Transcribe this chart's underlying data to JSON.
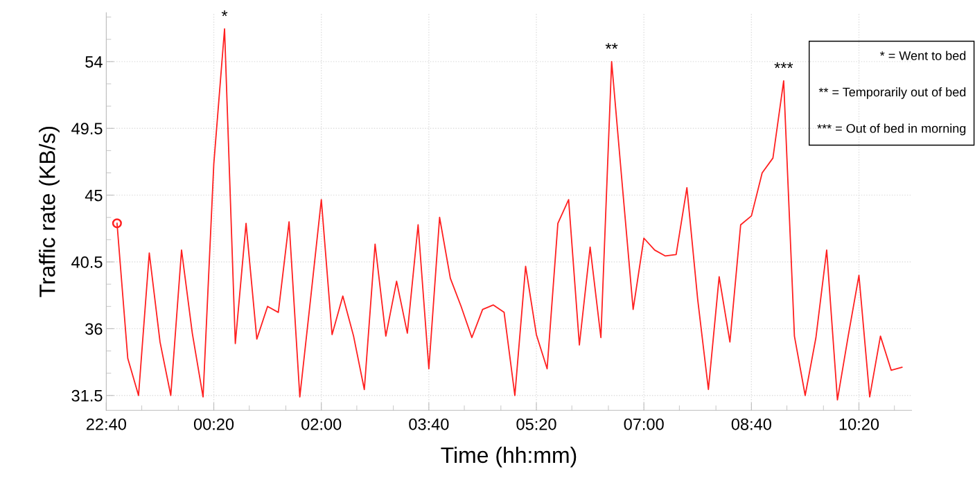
{
  "chart_data": {
    "type": "line",
    "xlabel": "Time (hh:mm)",
    "ylabel": "Traffic rate (KB/s)",
    "xlim": [
      "2000-01-01T22:40",
      "2000-01-02T11:09"
    ],
    "ylim": [
      30.5,
      57.3
    ],
    "xticks": [
      {
        "value": "2000-01-01T22:40",
        "label": "22:40"
      },
      {
        "value": "2000-01-01T23:13",
        "label": null
      },
      {
        "value": "2000-01-01T23:47",
        "label": null
      },
      {
        "value": "2000-01-02T00:20",
        "label": "00:20"
      },
      {
        "value": "2000-01-02T00:53",
        "label": null
      },
      {
        "value": "2000-01-02T01:27",
        "label": null
      },
      {
        "value": "2000-01-02T02:00",
        "label": "02:00"
      },
      {
        "value": "2000-01-02T02:33",
        "label": null
      },
      {
        "value": "2000-01-02T03:07",
        "label": null
      },
      {
        "value": "2000-01-02T03:40",
        "label": "03:40"
      },
      {
        "value": "2000-01-02T04:13",
        "label": null
      },
      {
        "value": "2000-01-02T04:47",
        "label": null
      },
      {
        "value": "2000-01-02T05:20",
        "label": "05:20"
      },
      {
        "value": "2000-01-02T05:53",
        "label": null
      },
      {
        "value": "2000-01-02T06:27",
        "label": null
      },
      {
        "value": "2000-01-02T07:00",
        "label": "07:00"
      },
      {
        "value": "2000-01-02T07:33",
        "label": null
      },
      {
        "value": "2000-01-02T08:07",
        "label": null
      },
      {
        "value": "2000-01-02T08:40",
        "label": "08:40"
      },
      {
        "value": "2000-01-02T09:13",
        "label": null
      },
      {
        "value": "2000-01-02T09:47",
        "label": null
      },
      {
        "value": "2000-01-02T10:20",
        "label": "10:20"
      },
      {
        "value": "2000-01-02T10:53",
        "label": null
      }
    ],
    "yticks": [
      31.5,
      {
        "value": 33,
        "label": null
      },
      {
        "value": 34.5,
        "label": null
      },
      36,
      {
        "value": 37.5,
        "label": null
      },
      {
        "value": 39,
        "label": null
      },
      40.5,
      {
        "value": 42,
        "label": null
      },
      {
        "value": 43.5,
        "label": null
      },
      45,
      {
        "value": 46.5,
        "label": null
      },
      {
        "value": 48,
        "label": null
      },
      49.5,
      {
        "value": 51,
        "label": null
      },
      {
        "value": 52.5,
        "label": null
      },
      54,
      {
        "value": 55.5,
        "label": null
      },
      {
        "value": 57,
        "label": null
      }
    ],
    "grid": true,
    "line_style": "solid",
    "series": [
      {
        "color": "#ff2020",
        "marker": "none",
        "x": [
          "2000-01-01T22:50",
          "2000-01-01T23:00",
          "2000-01-01T23:10",
          "2000-01-01T23:20",
          "2000-01-01T23:30",
          "2000-01-01T23:40",
          "2000-01-01T23:50",
          "2000-01-02T00:00",
          "2000-01-02T00:10",
          "2000-01-02T00:20",
          "2000-01-02T00:30",
          "2000-01-02T00:40",
          "2000-01-02T00:50",
          "2000-01-02T01:00",
          "2000-01-02T01:10",
          "2000-01-02T01:20",
          "2000-01-02T01:30",
          "2000-01-02T01:40",
          "2000-01-02T01:50",
          "2000-01-02T02:00",
          "2000-01-02T02:10",
          "2000-01-02T02:20",
          "2000-01-02T02:30",
          "2000-01-02T02:40",
          "2000-01-02T02:50",
          "2000-01-02T03:00",
          "2000-01-02T03:10",
          "2000-01-02T03:20",
          "2000-01-02T03:30",
          "2000-01-02T03:40",
          "2000-01-02T03:50",
          "2000-01-02T04:00",
          "2000-01-02T04:10",
          "2000-01-02T04:20",
          "2000-01-02T04:30",
          "2000-01-02T04:40",
          "2000-01-02T04:50",
          "2000-01-02T05:00",
          "2000-01-02T05:10",
          "2000-01-02T05:20",
          "2000-01-02T05:30",
          "2000-01-02T05:40",
          "2000-01-02T05:50",
          "2000-01-02T06:00",
          "2000-01-02T06:10",
          "2000-01-02T06:20",
          "2000-01-02T06:30",
          "2000-01-02T06:40",
          "2000-01-02T06:50",
          "2000-01-02T07:00",
          "2000-01-02T07:10",
          "2000-01-02T07:20",
          "2000-01-02T07:30",
          "2000-01-02T07:40",
          "2000-01-02T07:50",
          "2000-01-02T08:00",
          "2000-01-02T08:10",
          "2000-01-02T08:20",
          "2000-01-02T08:30",
          "2000-01-02T08:40",
          "2000-01-02T08:50",
          "2000-01-02T09:00",
          "2000-01-02T09:10",
          "2000-01-02T09:20",
          "2000-01-02T09:30",
          "2000-01-02T09:40",
          "2000-01-02T09:50",
          "2000-01-02T10:00",
          "2000-01-02T10:10",
          "2000-01-02T10:20",
          "2000-01-02T10:30",
          "2000-01-02T10:40",
          "2000-01-02T10:50",
          "2000-01-02T11:00"
        ],
        "values": [
          43.1,
          34.0,
          31.5,
          41.1,
          35.1,
          31.5,
          41.3,
          35.7,
          31.4,
          47.1,
          56.2,
          35.0,
          43.1,
          35.3,
          37.5,
          37.1,
          43.2,
          31.4,
          38.0,
          44.7,
          35.6,
          38.2,
          35.5,
          31.9,
          41.7,
          35.5,
          39.2,
          35.7,
          43.0,
          33.3,
          43.5,
          39.4,
          37.5,
          35.4,
          37.3,
          37.6,
          37.1,
          31.5,
          40.2,
          35.6,
          33.3,
          43.1,
          44.7,
          34.9,
          41.5,
          35.4,
          54.0,
          45.6,
          37.3,
          42.1,
          41.3,
          40.9,
          41.0,
          45.5,
          38.0,
          31.9,
          39.5,
          35.1,
          43.0,
          43.6,
          46.5,
          47.5,
          52.7,
          35.5,
          31.5,
          35.4,
          41.3,
          31.2,
          35.5,
          39.6,
          31.4,
          35.5,
          33.2,
          33.4
        ]
      },
      {
        "type": "scatter",
        "color": "#ff2020",
        "marker": "circle",
        "x": [
          "2000-01-01T22:50"
        ],
        "values": [
          43.1
        ]
      }
    ],
    "annotations": [
      {
        "text": "*",
        "x": "2000-01-02T00:30",
        "y": 56.2
      },
      {
        "text": "**",
        "x": "2000-01-02T06:30",
        "y": 54.0
      },
      {
        "text": "***",
        "x": "2000-01-02T09:10",
        "y": 52.7
      },
      "* = Went to bed",
      "** = Temporarily out of bed",
      "*** = Out of bed in morning"
    ]
  }
}
